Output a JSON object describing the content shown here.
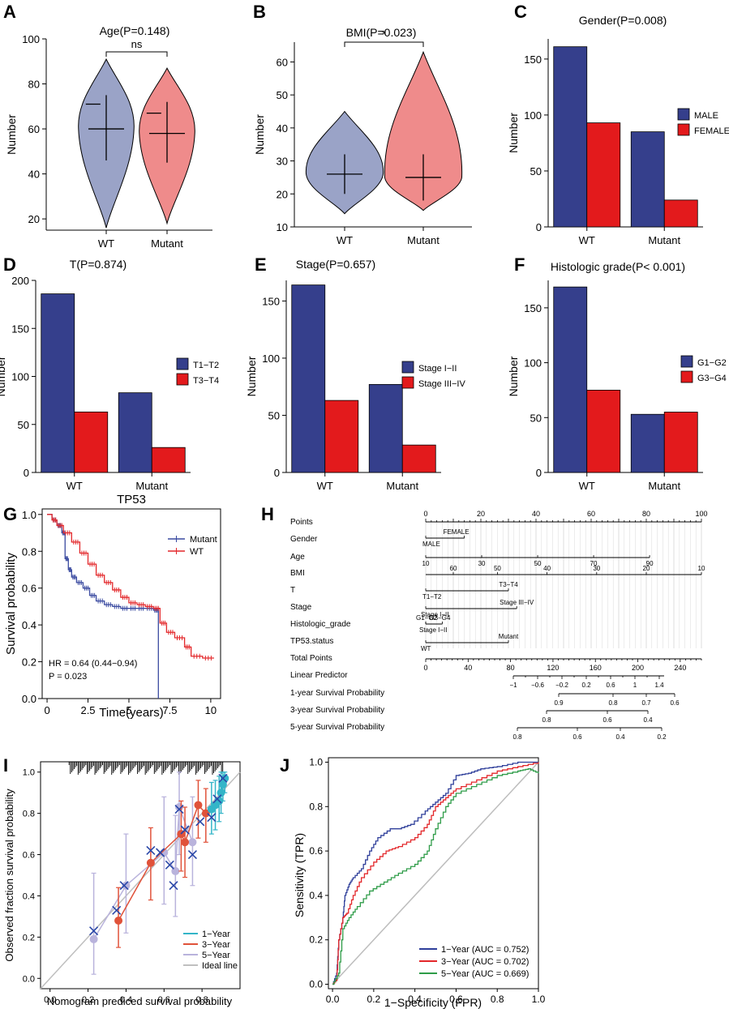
{
  "panels": {
    "A": "A",
    "B": "B",
    "C": "C",
    "D": "D",
    "E": "E",
    "F": "F",
    "G": "G",
    "H": "H",
    "I": "I",
    "J": "J"
  },
  "colors": {
    "navy": "#353f8c",
    "red": "#e31a1c",
    "violin_blue": "#9aa3c7",
    "violin_red": "#ef8b8b",
    "km_mutant": "#3a4aa0",
    "km_wt": "#e3272a",
    "cal_cyan": "#33b5c8",
    "cal_red": "#e0523a",
    "cal_lav": "#b9b3dc",
    "cal_gray": "#bfbfbf",
    "roc_blue": "#2e3e9a",
    "roc_red": "#e3272a",
    "roc_green": "#2e9c48"
  },
  "chart_data": [
    {
      "id": "A",
      "type": "violin",
      "title": "Age(P=0.148)",
      "ylabel": "Number",
      "categories": [
        "WT",
        "Mutant"
      ],
      "ylim": [
        15,
        100
      ],
      "yticks": [
        20,
        40,
        60,
        80,
        100
      ],
      "signif": "ns",
      "groups": [
        {
          "name": "WT",
          "mean": 60,
          "sd_low": 46,
          "sd_high": 75,
          "min": 16,
          "max": 91,
          "q3": 71
        },
        {
          "name": "Mutant",
          "mean": 58,
          "sd_low": 45,
          "sd_high": 72,
          "min": 18,
          "max": 87,
          "q3": 67
        }
      ]
    },
    {
      "id": "B",
      "type": "violin",
      "title": "BMI(P=0.023)",
      "ylabel": "Number",
      "categories": [
        "WT",
        "Mutant"
      ],
      "ylim": [
        10,
        66
      ],
      "yticks": [
        10,
        20,
        30,
        40,
        50,
        60
      ],
      "signif": "*",
      "groups": [
        {
          "name": "WT",
          "mean": 26,
          "sd_low": 20,
          "sd_high": 32,
          "min": 14,
          "max": 45
        },
        {
          "name": "Mutant",
          "mean": 25,
          "sd_low": 18,
          "sd_high": 32,
          "min": 15,
          "max": 63
        }
      ]
    },
    {
      "id": "C",
      "type": "bar",
      "title": "Gender(P=0.008)",
      "ylabel": "Number",
      "categories": [
        "WT",
        "Mutant"
      ],
      "ylim": [
        0,
        168
      ],
      "yticks": [
        0,
        50,
        100,
        150
      ],
      "series": [
        {
          "name": "MALE",
          "values": [
            161,
            85
          ]
        },
        {
          "name": "FEMALE",
          "values": [
            93,
            24
          ]
        }
      ]
    },
    {
      "id": "D",
      "type": "bar",
      "title": "T(P=0.874)",
      "ylabel": "Number",
      "categories": [
        "WT",
        "Mutant"
      ],
      "ylim": [
        0,
        200
      ],
      "yticks": [
        0,
        50,
        100,
        150,
        200
      ],
      "series": [
        {
          "name": "T1−T2",
          "values": [
            186,
            83
          ]
        },
        {
          "name": "T3−T4",
          "values": [
            63,
            26
          ]
        }
      ]
    },
    {
      "id": "E",
      "type": "bar",
      "title": "Stage(P=0.657)",
      "ylabel": "Number",
      "categories": [
        "WT",
        "Mutant"
      ],
      "ylim": [
        0,
        168
      ],
      "yticks": [
        0,
        50,
        100,
        150
      ],
      "series": [
        {
          "name": "Stage I−II",
          "values": [
            164,
            77
          ]
        },
        {
          "name": "Stage III−IV",
          "values": [
            63,
            24
          ]
        }
      ]
    },
    {
      "id": "F",
      "type": "bar",
      "title": "Histologic grade(P< 0.001)",
      "ylabel": "Number",
      "categories": [
        "WT",
        "Mutant"
      ],
      "ylim": [
        0,
        175
      ],
      "yticks": [
        0,
        50,
        100,
        150
      ],
      "series": [
        {
          "name": "G1−G2",
          "values": [
            169,
            53
          ]
        },
        {
          "name": "G3−G4",
          "values": [
            75,
            55
          ]
        }
      ]
    },
    {
      "id": "G",
      "type": "line",
      "title": "TP53",
      "xlabel": "Time(years)",
      "ylabel": "Survival probability",
      "xlim": [
        -0.3,
        10.6
      ],
      "ylim": [
        0,
        1.03
      ],
      "xticks": [
        {
          "v": 0,
          "l": "0"
        },
        {
          "v": 2.5,
          "l": "2.5"
        },
        {
          "v": 5,
          "l": "5"
        },
        {
          "v": 7.5,
          "l": "7.5"
        },
        {
          "v": 10,
          "l": "10"
        }
      ],
      "yticks": [
        {
          "v": 0,
          "l": "0.0"
        },
        {
          "v": 0.2,
          "l": "0.2"
        },
        {
          "v": 0.4,
          "l": "0.4"
        },
        {
          "v": 0.6,
          "l": "0.6"
        },
        {
          "v": 0.8,
          "l": "0.8"
        },
        {
          "v": 1,
          "l": "1.0"
        }
      ],
      "annotations": [
        "HR = 0.64 (0.44−0.94)",
        "P = 0.023"
      ],
      "series": [
        {
          "name": "Mutant",
          "x": [
            0,
            0.3,
            0.6,
            0.9,
            1.1,
            1.3,
            1.5,
            1.8,
            2.2,
            2.6,
            3,
            3.5,
            4,
            4.5,
            5,
            5.5,
            6,
            6.5,
            6.8,
            6.8
          ],
          "y": [
            1,
            0.97,
            0.94,
            0.9,
            0.76,
            0.7,
            0.66,
            0.63,
            0.6,
            0.56,
            0.53,
            0.51,
            0.5,
            0.49,
            0.49,
            0.49,
            0.49,
            0.48,
            0.48,
            0
          ]
        },
        {
          "name": "WT",
          "x": [
            0,
            0.3,
            0.6,
            1,
            1.5,
            2,
            2.5,
            3,
            3.5,
            4,
            4.5,
            5,
            5.5,
            6,
            6.5,
            6.9,
            7.3,
            7.8,
            8.4,
            8.8,
            9.5,
            10.2
          ],
          "y": [
            1,
            0.97,
            0.94,
            0.9,
            0.85,
            0.79,
            0.73,
            0.67,
            0.63,
            0.59,
            0.55,
            0.52,
            0.51,
            0.5,
            0.49,
            0.41,
            0.36,
            0.33,
            0.28,
            0.23,
            0.22,
            0.22
          ]
        }
      ]
    },
    {
      "id": "H",
      "type": "nomogram",
      "rows": [
        "Points",
        "Gender",
        "Age",
        "BMI",
        "T",
        "Stage",
        "Histologic_grade",
        "TP53.status",
        "Total Points",
        "Linear Predictor",
        "1-year Survival Probability",
        "3-year Survival Probability",
        "5-year Survival Probability"
      ],
      "points_scale": {
        "min": 0,
        "max": 100,
        "labels": [
          "0",
          "20",
          "40",
          "60",
          "80",
          "100"
        ]
      },
      "gender": {
        "levels": [
          "MALE",
          "FEMALE"
        ],
        "points": [
          0,
          14
        ]
      },
      "age": {
        "labels": [
          "10",
          "30",
          "50",
          "70",
          "90"
        ],
        "points": [
          0,
          20.3,
          40.6,
          60.9,
          81.2
        ]
      },
      "bmi": {
        "labels": [
          "60",
          "50",
          "40",
          "30",
          "20",
          "10"
        ],
        "points": [
          10,
          26,
          44,
          62,
          80,
          100
        ]
      },
      "t": {
        "levels": [
          "T1−T2",
          "T3−T4"
        ],
        "points": [
          0,
          30
        ]
      },
      "stage": {
        "levels": [
          "Stage I−II",
          "Stage III−IV"
        ],
        "points": [
          0,
          33
        ]
      },
      "grade": {
        "levels": [
          "Stage I−II",
          "G3−G4",
          "G1−G2"
        ],
        "points": [
          0,
          6,
          2
        ]
      },
      "tp53": {
        "levels": [
          "WT",
          "Mutant"
        ],
        "points": [
          0,
          30
        ]
      },
      "total_points": {
        "min": 0,
        "max": 260,
        "labels": [
          "0",
          "40",
          "80",
          "120",
          "160",
          "200",
          "240"
        ]
      },
      "linear_predictor": [
        "−1",
        "−0.6",
        "−0.2",
        "0.2",
        "0.6",
        "1",
        "1.4"
      ],
      "surv1": [
        "0.9",
        "0.8",
        "0.7",
        "0.6"
      ],
      "surv3": [
        "0.8",
        "0.6",
        "0.4"
      ],
      "surv5": [
        "0.8",
        "0.6",
        "0.4",
        "0.2"
      ]
    },
    {
      "id": "I",
      "type": "scatter",
      "xlabel": "Nomogram prediced survival probability",
      "ylabel": "Observed fraction survival probability",
      "xlim": [
        -0.05,
        1.0
      ],
      "ylim": [
        -0.05,
        1.05
      ],
      "xticks": [
        {
          "v": 0,
          "l": "0.0"
        },
        {
          "v": 0.2,
          "l": "0.2"
        },
        {
          "v": 0.4,
          "l": "0.4"
        },
        {
          "v": 0.6,
          "l": "0.6"
        },
        {
          "v": 0.8,
          "l": "0.8"
        }
      ],
      "yticks": [
        {
          "v": 0,
          "l": "0.0"
        },
        {
          "v": 0.2,
          "l": "0.2"
        },
        {
          "v": 0.4,
          "l": "0.4"
        },
        {
          "v": 0.6,
          "l": "0.6"
        },
        {
          "v": 0.8,
          "l": "0.8"
        },
        {
          "v": 1,
          "l": "1.0"
        }
      ],
      "legend": [
        "1−Year",
        "3−Year",
        "5−Year",
        "Ideal line"
      ],
      "series": [
        {
          "name": "1−Year",
          "x": [
            0.85,
            0.87,
            0.89,
            0.9,
            0.91,
            0.92
          ],
          "y": [
            0.82,
            0.84,
            0.86,
            0.9,
            0.94,
            0.97
          ],
          "lo": [
            0.7,
            0.72,
            0.76,
            0.8,
            0.86,
            0.9
          ],
          "hi": [
            0.95,
            0.96,
            0.98,
            1,
            1,
            1
          ]
        },
        {
          "name": "3−Year",
          "x": [
            0.36,
            0.53,
            0.69,
            0.71,
            0.78,
            0.82
          ],
          "y": [
            0.28,
            0.56,
            0.7,
            0.66,
            0.84,
            0.8
          ],
          "lo": [
            0.15,
            0.38,
            0.52,
            0.49,
            0.68,
            0.66
          ],
          "hi": [
            0.44,
            0.73,
            0.86,
            0.83,
            0.96,
            0.92
          ]
        },
        {
          "name": "5−Year",
          "x": [
            0.23,
            0.4,
            0.6,
            0.66,
            0.68,
            0.75
          ],
          "y": [
            0.19,
            0.45,
            0.61,
            0.52,
            0.83,
            0.66
          ],
          "lo": [
            0.02,
            0.22,
            0.36,
            0.3,
            0.6,
            0.45
          ],
          "hi": [
            0.51,
            0.7,
            0.88,
            0.79,
            1,
            0.88
          ]
        },
        {
          "name": "crosses",
          "x": [
            0.23,
            0.35,
            0.39,
            0.53,
            0.58,
            0.63,
            0.65,
            0.68,
            0.71,
            0.75,
            0.79,
            0.85,
            0.88,
            0.91
          ],
          "y": [
            0.23,
            0.33,
            0.45,
            0.62,
            0.61,
            0.55,
            0.45,
            0.82,
            0.72,
            0.6,
            0.76,
            0.78,
            0.87,
            0.97
          ]
        }
      ]
    },
    {
      "id": "J",
      "type": "line",
      "xlabel": "1−Specificity (FPR)",
      "ylabel": "Sensitivity (TPR)",
      "xlim": [
        -0.02,
        1.0
      ],
      "ylim": [
        -0.02,
        1.02
      ],
      "xticks": [
        {
          "v": 0,
          "l": "0.0"
        },
        {
          "v": 0.2,
          "l": "0.2"
        },
        {
          "v": 0.4,
          "l": "0.4"
        },
        {
          "v": 0.6,
          "l": "0.6"
        },
        {
          "v": 0.8,
          "l": "0.8"
        },
        {
          "v": 1,
          "l": "1.0"
        }
      ],
      "yticks": [
        {
          "v": 0,
          "l": "0.0"
        },
        {
          "v": 0.2,
          "l": "0.2"
        },
        {
          "v": 0.4,
          "l": "0.4"
        },
        {
          "v": 0.6,
          "l": "0.6"
        },
        {
          "v": 0.8,
          "l": "0.8"
        },
        {
          "v": 1,
          "l": "1.0"
        }
      ],
      "legend": [
        "1−Year (AUC = 0.752)",
        "3−Year (AUC = 0.702)",
        "5−Year (AUC = 0.669)"
      ],
      "series": [
        {
          "name": "1−Year (AUC = 0.752)",
          "x": [
            0,
            0.02,
            0.03,
            0.05,
            0.06,
            0.08,
            0.1,
            0.14,
            0.18,
            0.22,
            0.28,
            0.32,
            0.38,
            0.45,
            0.5,
            0.55,
            0.6,
            0.66,
            0.72,
            0.8,
            0.9,
            1
          ],
          "y": [
            0,
            0.05,
            0.2,
            0.3,
            0.4,
            0.45,
            0.48,
            0.52,
            0.6,
            0.66,
            0.7,
            0.7,
            0.72,
            0.78,
            0.82,
            0.86,
            0.94,
            0.95,
            0.97,
            0.98,
            1,
            1
          ]
        },
        {
          "name": "3−Year (AUC = 0.702)",
          "x": [
            0,
            0.02,
            0.03,
            0.05,
            0.07,
            0.1,
            0.14,
            0.2,
            0.26,
            0.32,
            0.4,
            0.46,
            0.5,
            0.55,
            0.6,
            0.7,
            0.8,
            0.9,
            1
          ],
          "y": [
            0,
            0.02,
            0.2,
            0.3,
            0.32,
            0.4,
            0.48,
            0.55,
            0.6,
            0.62,
            0.66,
            0.72,
            0.8,
            0.84,
            0.88,
            0.92,
            0.96,
            0.98,
            1
          ]
        },
        {
          "name": "5−Year (AUC = 0.669)",
          "x": [
            0,
            0.03,
            0.05,
            0.08,
            0.12,
            0.18,
            0.25,
            0.32,
            0.4,
            0.46,
            0.5,
            0.55,
            0.6,
            0.7,
            0.8,
            0.9,
            0.95,
            1
          ],
          "y": [
            0,
            0.05,
            0.25,
            0.3,
            0.35,
            0.42,
            0.46,
            0.5,
            0.54,
            0.6,
            0.7,
            0.8,
            0.86,
            0.9,
            0.94,
            0.96,
            0.97,
            0.95
          ]
        }
      ]
    }
  ]
}
